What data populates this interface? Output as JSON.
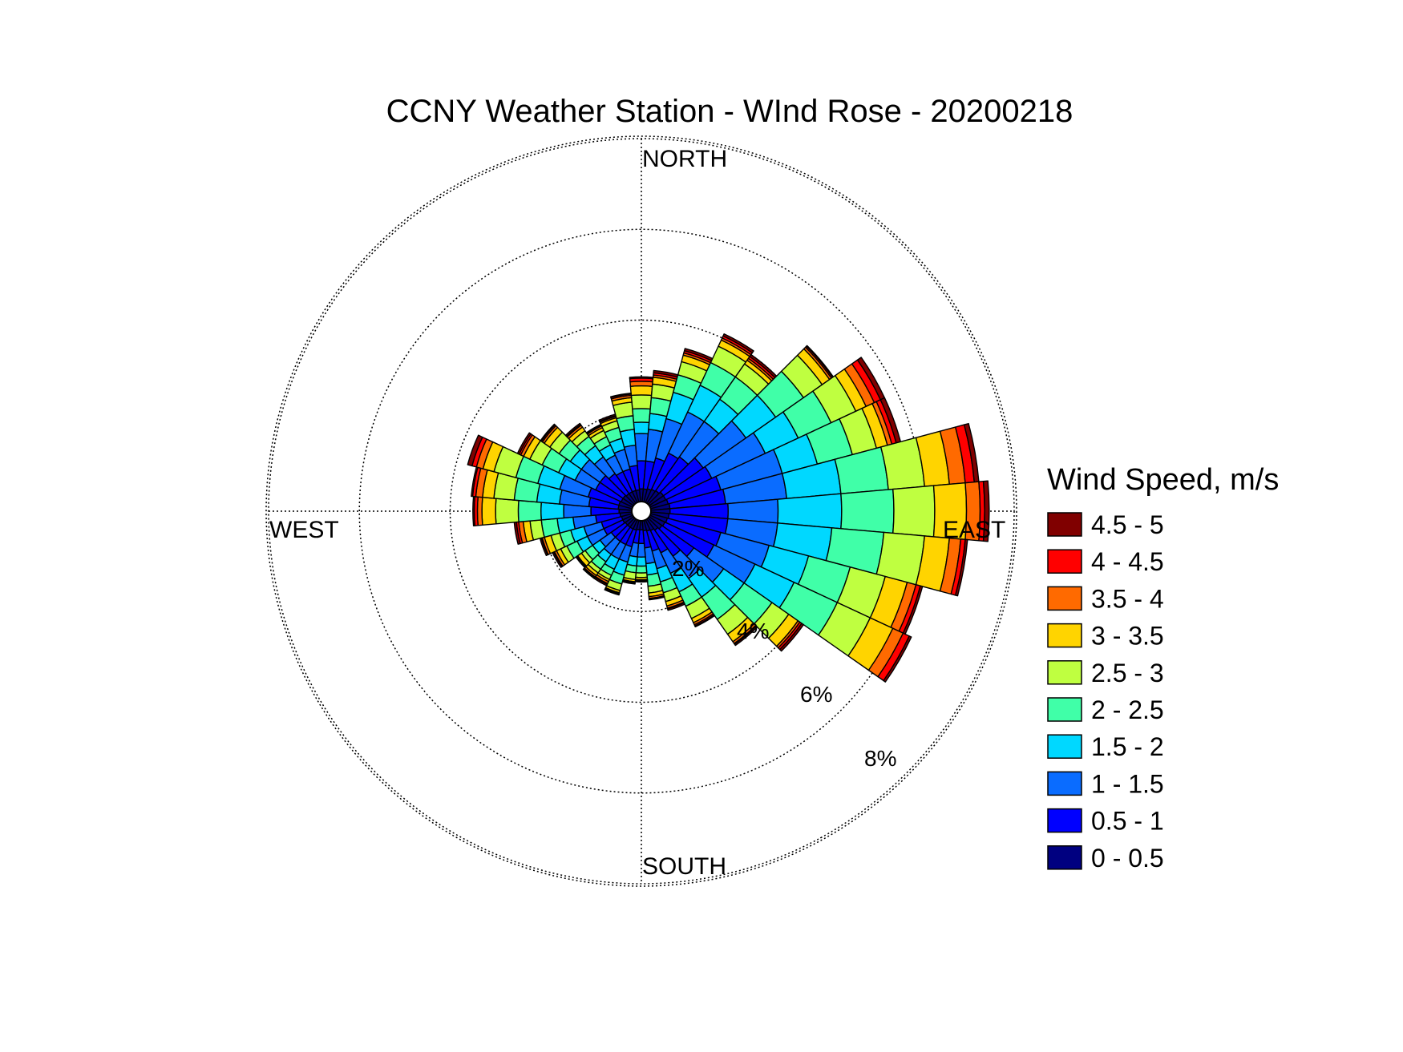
{
  "chart_data": {
    "type": "wind-rose",
    "title": "CCNY Weather Station - WInd Rose - 20200218",
    "direction_labels": {
      "north": "NORTH",
      "east": "EAST",
      "south": "SOUTH",
      "west": "WEST"
    },
    "ring_labels": [
      "2%",
      "4%",
      "6%",
      "8%"
    ],
    "ring_values": [
      2,
      4,
      6,
      8
    ],
    "r_max": 8,
    "grid": "dotted",
    "legend": {
      "title": "Wind Speed, m/s",
      "placement": "right",
      "bins": [
        {
          "label": "4.5 - 5",
          "color": "#800000"
        },
        {
          "label": "4 - 4.5",
          "color": "#ff0000"
        },
        {
          "label": "3.5 - 4",
          "color": "#ff6a00"
        },
        {
          "label": "3 - 3.5",
          "color": "#ffd400"
        },
        {
          "label": "2.5 - 3",
          "color": "#bfff40"
        },
        {
          "label": "2 - 2.5",
          "color": "#40ffa8"
        },
        {
          "label": "1.5 - 2",
          "color": "#00d8ff"
        },
        {
          "label": "1 - 1.5",
          "color": "#0a6cff"
        },
        {
          "label": "0.5 - 1",
          "color": "#0000ff"
        },
        {
          "label": "0 - 0.5",
          "color": "#000080"
        }
      ]
    },
    "sector_width_deg": 10,
    "sectors": [
      {
        "direction": 0,
        "cumulative": [
          0.28,
          0.9,
          1.5,
          1.75,
          2.05,
          2.35,
          2.55,
          2.65,
          2.72,
          2.75
        ]
      },
      {
        "direction": 10,
        "cumulative": [
          0.28,
          0.9,
          1.6,
          1.95,
          2.3,
          2.6,
          2.75,
          2.8,
          2.85,
          2.9
        ]
      },
      {
        "direction": 20,
        "cumulative": [
          0.3,
          1.0,
          1.9,
          2.5,
          2.9,
          3.2,
          3.35,
          3.4,
          3.45,
          3.5
        ]
      },
      {
        "direction": 30,
        "cumulative": [
          0.32,
          1.2,
          2.2,
          2.85,
          3.4,
          3.8,
          3.95,
          4.0,
          4.05,
          4.1
        ]
      },
      {
        "direction": 40,
        "cumulative": [
          0.34,
          1.25,
          2.2,
          2.8,
          3.4,
          3.75,
          3.85,
          3.9,
          3.95,
          4.0
        ]
      },
      {
        "direction": 50,
        "cumulative": [
          0.38,
          1.45,
          2.6,
          3.4,
          4.15,
          4.65,
          4.85,
          4.9,
          4.93,
          4.95
        ]
      },
      {
        "direction": 60,
        "cumulative": [
          0.38,
          1.5,
          2.8,
          3.6,
          4.4,
          5.0,
          5.25,
          5.45,
          5.6,
          5.7
        ]
      },
      {
        "direction": 70,
        "cumulative": [
          0.4,
          1.6,
          3.0,
          3.8,
          4.6,
          5.15,
          5.4,
          5.5,
          5.6,
          5.7
        ]
      },
      {
        "direction": 80,
        "cumulative": [
          0.42,
          1.65,
          3.0,
          4.2,
          5.25,
          6.05,
          6.6,
          6.95,
          7.15,
          7.25
        ]
      },
      {
        "direction": 90,
        "cumulative": [
          0.42,
          1.7,
          2.8,
          4.2,
          5.35,
          6.25,
          6.95,
          7.25,
          7.35,
          7.45
        ]
      },
      {
        "direction": 100,
        "cumulative": [
          0.4,
          1.7,
          2.8,
          4.0,
          5.15,
          6.05,
          6.6,
          6.85,
          6.95,
          7.0
        ]
      },
      {
        "direction": 110,
        "cumulative": [
          0.38,
          1.6,
          2.7,
          3.6,
          4.55,
          5.35,
          5.85,
          6.05,
          6.15,
          6.2
        ]
      },
      {
        "direction": 120,
        "cumulative": [
          0.36,
          1.55,
          2.55,
          3.5,
          4.55,
          5.35,
          5.9,
          6.15,
          6.3,
          6.35
        ]
      },
      {
        "direction": 130,
        "cumulative": [
          0.34,
          1.2,
          2.0,
          2.55,
          3.3,
          3.75,
          4.0,
          4.05,
          4.1,
          4.15
        ]
      },
      {
        "direction": 140,
        "cumulative": [
          0.3,
          1.0,
          1.6,
          2.1,
          2.7,
          3.1,
          3.3,
          3.35,
          3.37,
          3.4
        ]
      },
      {
        "direction": 150,
        "cumulative": [
          0.26,
          0.8,
          1.3,
          1.75,
          2.1,
          2.4,
          2.5,
          2.55,
          2.58,
          2.6
        ]
      },
      {
        "direction": 160,
        "cumulative": [
          0.24,
          0.7,
          1.1,
          1.4,
          1.65,
          1.85,
          1.95,
          2.0,
          2.02,
          2.05
        ]
      },
      {
        "direction": 170,
        "cumulative": [
          0.22,
          0.6,
          0.95,
          1.2,
          1.45,
          1.6,
          1.68,
          1.72,
          1.74,
          1.75
        ]
      },
      {
        "direction": 180,
        "cumulative": [
          0.2,
          0.5,
          0.8,
          1.0,
          1.15,
          1.25,
          1.3,
          1.32,
          1.34,
          1.35
        ]
      },
      {
        "direction": 190,
        "cumulative": [
          0.2,
          0.5,
          0.8,
          1.0,
          1.15,
          1.3,
          1.35,
          1.37,
          1.39,
          1.4
        ]
      },
      {
        "direction": 200,
        "cumulative": [
          0.22,
          0.6,
          0.95,
          1.25,
          1.45,
          1.6,
          1.65,
          1.67,
          1.69,
          1.7
        ]
      },
      {
        "direction": 210,
        "cumulative": [
          0.22,
          0.6,
          0.95,
          1.2,
          1.35,
          1.45,
          1.5,
          1.55,
          1.57,
          1.6
        ]
      },
      {
        "direction": 220,
        "cumulative": [
          0.22,
          0.6,
          0.95,
          1.15,
          1.35,
          1.45,
          1.52,
          1.56,
          1.58,
          1.6
        ]
      },
      {
        "direction": 230,
        "cumulative": [
          0.22,
          0.6,
          0.9,
          1.1,
          1.3,
          1.4,
          1.5,
          1.52,
          1.53,
          1.55
        ]
      },
      {
        "direction": 240,
        "cumulative": [
          0.24,
          0.7,
          1.1,
          1.35,
          1.6,
          1.75,
          1.85,
          1.9,
          1.92,
          1.95
        ]
      },
      {
        "direction": 250,
        "cumulative": [
          0.24,
          0.7,
          1.1,
          1.4,
          1.65,
          1.85,
          2.0,
          2.05,
          2.07,
          2.1
        ]
      },
      {
        "direction": 260,
        "cumulative": [
          0.26,
          0.8,
          1.3,
          1.65,
          2.0,
          2.25,
          2.4,
          2.5,
          2.55,
          2.6
        ]
      },
      {
        "direction": 270,
        "cumulative": [
          0.28,
          0.9,
          1.5,
          2.0,
          2.5,
          3.0,
          3.3,
          3.4,
          3.47,
          3.5
        ]
      },
      {
        "direction": 280,
        "cumulative": [
          0.3,
          0.95,
          1.6,
          2.1,
          2.6,
          3.05,
          3.3,
          3.45,
          3.52,
          3.55
        ]
      },
      {
        "direction": 290,
        "cumulative": [
          0.3,
          1.0,
          1.65,
          2.15,
          2.65,
          3.15,
          3.4,
          3.55,
          3.65,
          3.75
        ]
      },
      {
        "direction": 300,
        "cumulative": [
          0.28,
          0.9,
          1.4,
          1.8,
          2.2,
          2.5,
          2.65,
          2.72,
          2.76,
          2.8
        ]
      },
      {
        "direction": 310,
        "cumulative": [
          0.28,
          0.9,
          1.4,
          1.7,
          2.0,
          2.25,
          2.4,
          2.45,
          2.48,
          2.5
        ]
      },
      {
        "direction": 320,
        "cumulative": [
          0.26,
          0.8,
          1.25,
          1.55,
          1.8,
          1.95,
          2.05,
          2.1,
          2.12,
          2.15
        ]
      },
      {
        "direction": 330,
        "cumulative": [
          0.26,
          0.75,
          1.15,
          1.4,
          1.6,
          1.75,
          1.82,
          1.86,
          1.88,
          1.9
        ]
      },
      {
        "direction": 340,
        "cumulative": [
          0.26,
          0.75,
          1.2,
          1.45,
          1.7,
          1.85,
          1.92,
          1.95,
          1.97,
          2.0
        ]
      },
      {
        "direction": 350,
        "cumulative": [
          0.26,
          0.8,
          1.25,
          1.6,
          1.9,
          2.2,
          2.3,
          2.35,
          2.38,
          2.4
        ]
      }
    ]
  }
}
